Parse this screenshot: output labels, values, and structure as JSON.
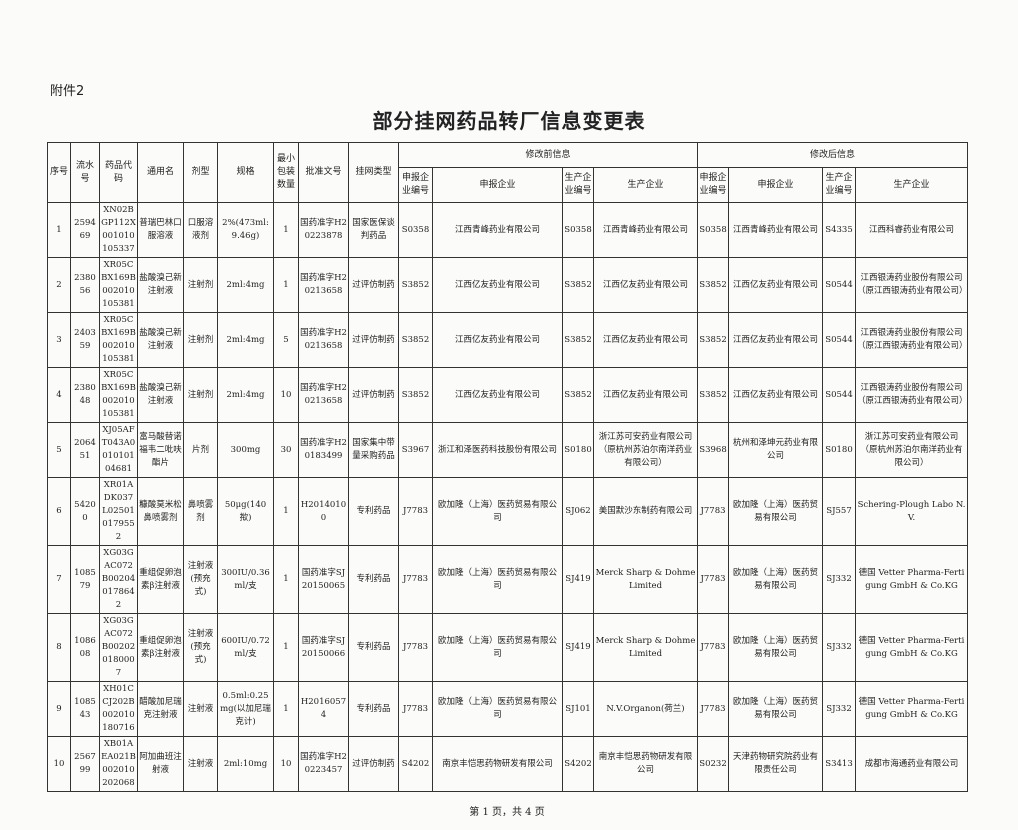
{
  "attachment_label": "附件2",
  "title": "部分挂网药品转厂信息变更表",
  "header": {
    "fixed_columns": [
      "序号",
      "流水号",
      "药品代码",
      "通用名",
      "剂型",
      "规格",
      "最小包装数量",
      "批准文号",
      "挂网类型"
    ],
    "group_before": "修改前信息",
    "group_after": "修改后信息",
    "before_columns": [
      "申报企业编号",
      "申报企业",
      "生产企业编号",
      "生产企业"
    ],
    "after_columns": [
      "申报企业编号",
      "申报企业",
      "生产企业编号",
      "生产企业"
    ]
  },
  "rows": [
    [
      "1",
      "259469",
      "XN02BGP112X001010105337",
      "普瑞巴林口服溶液",
      "口服溶液剂",
      "2%(473ml:9.46g)",
      "1",
      "国药准字H20223878",
      "国家医保谈判药品",
      "S0358",
      "江西青峰药业有限公司",
      "S0358",
      "江西青峰药业有限公司",
      "S0358",
      "江西青峰药业有限公司",
      "S4335",
      "江西科睿药业有限公司"
    ],
    [
      "2",
      "238056",
      "XR05CBX169B002010105381",
      "盐酸溴己新注射液",
      "注射剂",
      "2ml:4mg",
      "1",
      "国药准字H20213658",
      "过评仿制药",
      "S3852",
      "江西亿友药业有限公司",
      "S3852",
      "江西亿友药业有限公司",
      "S3852",
      "江西亿友药业有限公司",
      "S0544",
      "江西银涛药业股份有限公司（原江西银涛药业有限公司）"
    ],
    [
      "3",
      "240359",
      "XR05CBX169B002010105381",
      "盐酸溴己新注射液",
      "注射剂",
      "2ml:4mg",
      "5",
      "国药准字H20213658",
      "过评仿制药",
      "S3852",
      "江西亿友药业有限公司",
      "S3852",
      "江西亿友药业有限公司",
      "S3852",
      "江西亿友药业有限公司",
      "S0544",
      "江西银涛药业股份有限公司（原江西银涛药业有限公司）"
    ],
    [
      "4",
      "238048",
      "XR05CBX169B002010105381",
      "盐酸溴己新注射液",
      "注射剂",
      "2ml:4mg",
      "10",
      "国药准字H20213658",
      "过评仿制药",
      "S3852",
      "江西亿友药业有限公司",
      "S3852",
      "江西亿友药业有限公司",
      "S3852",
      "江西亿友药业有限公司",
      "S0544",
      "江西银涛药业股份有限公司（原江西银涛药业有限公司）"
    ],
    [
      "5",
      "206451",
      "XJ05AFT043A001010104681",
      "富马酸替诺福韦二吡呋酯片",
      "片剂",
      "300mg",
      "30",
      "国药准字H20183499",
      "国家集中带量采购药品",
      "S3967",
      "浙江和泽医药科技股份有限公司",
      "S0180",
      "浙江苏可安药业有限公司（原杭州苏泊尔南洋药业有限公司）",
      "S3968",
      "杭州和泽坤元药业有限公司",
      "S0180",
      "浙江苏可安药业有限公司（原杭州苏泊尔南洋药业有限公司）"
    ],
    [
      "6",
      "54200",
      "XR01ADK037L025010179552",
      "糠酸莫米松鼻喷雾剂",
      "鼻喷雾剂",
      "50μg(140揿)",
      "1",
      "H20140100",
      "专利药品",
      "J7783",
      "欧加隆（上海）医药贸易有限公司",
      "SJ062",
      "美国默沙东制药有限公司",
      "J7783",
      "欧加隆（上海）医药贸易有限公司",
      "SJ557",
      "Schering-Plough Labo N.V."
    ],
    [
      "7",
      "108579",
      "XG03GAC072B002040178642",
      "重组促卵泡素β注射液",
      "注射液(预充式)",
      "300IU/0.36ml/支",
      "1",
      "国药准字SJ20150065",
      "专利药品",
      "J7783",
      "欧加隆（上海）医药贸易有限公司",
      "SJ419",
      "Merck Sharp & Dohme Limited",
      "J7783",
      "欧加隆（上海）医药贸易有限公司",
      "SJ332",
      "德国 Vetter Pharma-Fertigung GmbH & Co.KG"
    ],
    [
      "8",
      "108608",
      "XG03GAC072B002020180007",
      "重组促卵泡素β注射液",
      "注射液(预充式)",
      "600IU/0.72ml/支",
      "1",
      "国药准字SJ20150066",
      "专利药品",
      "J7783",
      "欧加隆（上海）医药贸易有限公司",
      "SJ419",
      "Merck Sharp & Dohme Limited",
      "J7783",
      "欧加隆（上海）医药贸易有限公司",
      "SJ332",
      "德国 Vetter Pharma-Fertigung GmbH & Co.KG"
    ],
    [
      "9",
      "108543",
      "XH01CCJ202B002010180716",
      "醋酸加尼瑞克注射液",
      "注射液",
      "0.5ml:0.25mg(以加尼瑞克计)",
      "1",
      "H20160574",
      "专利药品",
      "J7783",
      "欧加隆（上海）医药贸易有限公司",
      "SJ101",
      "N.V.Organon(荷兰)",
      "J7783",
      "欧加隆（上海）医药贸易有限公司",
      "SJ332",
      "德国 Vetter Pharma-Fertigung GmbH & Co.KG"
    ],
    [
      "10",
      "256799",
      "XB01AEA021B002010202068",
      "阿加曲班注射液",
      "注射液",
      "2ml:10mg",
      "10",
      "国药准字H20223457",
      "过评仿制药",
      "S4202",
      "南京丰恺思药物研发有限公司",
      "S4202",
      "南京丰恺思药物研发有限公司",
      "S0232",
      "天津药物研究院药业有限责任公司",
      "S3413",
      "成都市海通药业有限公司"
    ]
  ],
  "footer": "第 1 页，共 4 页"
}
